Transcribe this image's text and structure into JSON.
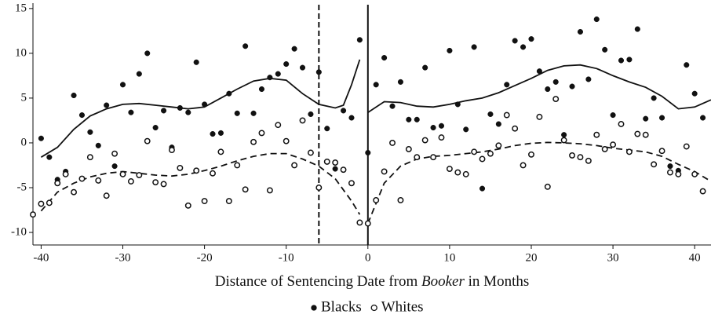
{
  "chart_data": {
    "type": "scatter",
    "xlabel": [
      "Distance of Sentencing Date from ",
      "Booker",
      " in Months"
    ],
    "xlim": [
      -41,
      42
    ],
    "ylim": [
      -11.4,
      15.6
    ],
    "xticks": [
      -40,
      -30,
      -20,
      -10,
      0,
      10,
      20,
      30,
      40
    ],
    "yticks": [
      -10,
      -5,
      0,
      5,
      10,
      15
    ],
    "vlines": [
      {
        "x": -6,
        "style": "dashed"
      },
      {
        "x": 0,
        "style": "solid"
      }
    ],
    "series": [
      {
        "name": "Blacks",
        "marker": "filled",
        "color": "#111111",
        "x": [
          -40,
          -39,
          -38,
          -37,
          -36,
          -35,
          -34,
          -33,
          -32,
          -31,
          -30,
          -29,
          -28,
          -27,
          -26,
          -25,
          -24,
          -23,
          -22,
          -21,
          -20,
          -19,
          -18,
          -17,
          -16,
          -15,
          -14,
          -13,
          -12,
          -11,
          -10,
          -9,
          -8,
          -7,
          -6,
          -5,
          -4,
          -3,
          -2,
          -1,
          0,
          1,
          2,
          3,
          4,
          5,
          6,
          7,
          8,
          9,
          10,
          11,
          12,
          13,
          14,
          15,
          16,
          17,
          18,
          19,
          20,
          21,
          22,
          23,
          24,
          25,
          26,
          27,
          28,
          29,
          30,
          31,
          32,
          33,
          34,
          35,
          36,
          37,
          38,
          39,
          40,
          41
        ],
        "values": [
          0.5,
          -1.6,
          -4.1,
          -3.2,
          5.3,
          3.1,
          1.2,
          -0.3,
          4.2,
          -2.6,
          6.5,
          3.4,
          7.7,
          10.0,
          1.7,
          3.6,
          -0.5,
          3.9,
          3.4,
          9.0,
          4.3,
          1.0,
          1.1,
          5.5,
          3.3,
          10.8,
          3.3,
          6.0,
          7.3,
          7.7,
          8.8,
          10.5,
          8.4,
          3.2,
          7.9,
          1.6,
          -2.9,
          3.6,
          2.8,
          11.5,
          -1.1,
          6.5,
          9.5,
          4.1,
          6.8,
          2.6,
          2.6,
          8.4,
          1.7,
          1.9,
          10.3,
          4.3,
          1.5,
          10.7,
          -5.1,
          3.2,
          2.1,
          6.5,
          11.4,
          10.7,
          11.6,
          8.0,
          6.0,
          6.8,
          0.9,
          6.3,
          12.4,
          7.1,
          13.8,
          10.4,
          3.1,
          9.2,
          9.3,
          12.7,
          2.7,
          5.0,
          2.8,
          -2.6,
          -3.1,
          8.7,
          5.5,
          2.8
        ]
      },
      {
        "name": "Whites",
        "marker": "open",
        "color": "#111111",
        "x": [
          -41,
          -40,
          -39,
          -38,
          -37,
          -36,
          -35,
          -34,
          -33,
          -32,
          -31,
          -30,
          -29,
          -28,
          -27,
          -26,
          -25,
          -24,
          -23,
          -22,
          -21,
          -20,
          -19,
          -18,
          -17,
          -16,
          -15,
          -14,
          -13,
          -12,
          -11,
          -10,
          -9,
          -8,
          -7,
          -6,
          -5,
          -4,
          -3,
          -2,
          -1,
          0,
          1,
          2,
          3,
          4,
          5,
          6,
          7,
          8,
          9,
          10,
          11,
          12,
          13,
          14,
          15,
          16,
          17,
          18,
          19,
          20,
          21,
          22,
          23,
          24,
          25,
          26,
          27,
          28,
          29,
          30,
          31,
          32,
          33,
          34,
          35,
          36,
          37,
          38,
          39,
          40,
          41
        ],
        "values": [
          -8.0,
          -6.8,
          -6.7,
          -4.5,
          -3.5,
          -5.5,
          -4.0,
          -1.6,
          -4.2,
          -5.9,
          -1.2,
          -3.5,
          -4.3,
          -3.6,
          0.2,
          -4.4,
          -4.6,
          -0.8,
          -2.8,
          -7.0,
          -3.1,
          -6.5,
          -3.4,
          -1.0,
          -6.5,
          -2.5,
          -5.2,
          0.1,
          1.1,
          -5.3,
          2.0,
          0.2,
          -2.5,
          2.5,
          -1.1,
          -5.0,
          -2.1,
          -2.2,
          -3.0,
          -4.5,
          -8.9,
          -9.0,
          -6.4,
          -3.2,
          0.0,
          -6.4,
          -0.7,
          -1.6,
          0.3,
          -1.6,
          0.6,
          -2.9,
          -3.3,
          -3.5,
          -1.0,
          -1.8,
          -1.2,
          -0.3,
          3.1,
          1.6,
          -2.5,
          -1.3,
          2.9,
          -4.9,
          4.9,
          0.3,
          -1.4,
          -1.6,
          -2.0,
          0.9,
          -0.7,
          -0.2,
          2.1,
          -1.0,
          1.0,
          0.9,
          -2.4,
          -0.9,
          -3.3,
          -3.5,
          -0.4,
          -3.5,
          -5.4
        ]
      }
    ],
    "fits": [
      {
        "series": 0,
        "style": "solid",
        "x": [
          -40,
          -38,
          -36,
          -34,
          -32,
          -30,
          -28,
          -26,
          -24,
          -22,
          -20,
          -18,
          -16,
          -14,
          -12,
          -10,
          -8,
          -6,
          -4,
          -3,
          -2,
          -1
        ],
        "values": [
          -1.6,
          -0.5,
          1.5,
          3.0,
          3.8,
          4.3,
          4.4,
          4.2,
          4.0,
          3.8,
          4.0,
          5.0,
          6.0,
          6.9,
          7.2,
          7.0,
          5.5,
          4.3,
          3.9,
          4.2,
          6.5,
          9.3
        ]
      },
      {
        "series": 0,
        "style": "solid",
        "x": [
          0,
          2,
          4,
          6,
          8,
          10,
          12,
          14,
          16,
          18,
          20,
          22,
          24,
          26,
          28,
          30,
          32,
          34,
          36,
          38,
          40,
          42
        ],
        "values": [
          3.4,
          4.6,
          4.5,
          4.1,
          4.0,
          4.3,
          4.7,
          5.0,
          5.6,
          6.4,
          7.2,
          8.1,
          8.6,
          8.7,
          8.3,
          7.5,
          6.8,
          6.2,
          5.2,
          3.8,
          4.0,
          4.8
        ]
      },
      {
        "series": 1,
        "style": "dashed",
        "x": [
          -40,
          -38,
          -36,
          -34,
          -32,
          -30,
          -28,
          -26,
          -24,
          -22,
          -20,
          -18,
          -16,
          -14,
          -12,
          -10,
          -8,
          -6,
          -4,
          -2,
          -1
        ],
        "values": [
          -7.6,
          -5.5,
          -4.5,
          -3.8,
          -3.4,
          -3.2,
          -3.4,
          -3.6,
          -3.7,
          -3.5,
          -3.1,
          -2.6,
          -2.0,
          -1.5,
          -1.2,
          -1.2,
          -1.8,
          -2.6,
          -4.0,
          -6.5,
          -8.0
        ]
      },
      {
        "series": 1,
        "style": "dashed",
        "x": [
          0,
          2,
          4,
          6,
          8,
          10,
          12,
          14,
          16,
          18,
          20,
          22,
          24,
          26,
          28,
          30,
          32,
          34,
          36,
          38,
          40,
          42
        ],
        "values": [
          -9.0,
          -4.5,
          -2.6,
          -1.8,
          -1.5,
          -1.4,
          -1.2,
          -1.0,
          -0.7,
          -0.3,
          -0.05,
          0.05,
          0.0,
          -0.1,
          -0.3,
          -0.6,
          -0.8,
          -1.0,
          -1.5,
          -2.4,
          -3.2,
          -4.3
        ]
      }
    ]
  }
}
